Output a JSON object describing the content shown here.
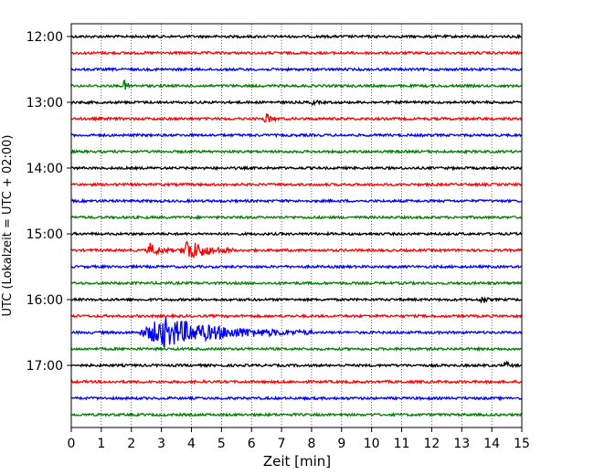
{
  "chart_data": {
    "type": "line",
    "title": "",
    "xlabel": "Zeit  [min]",
    "ylabel": "UTC (Lokalzeit = UTC + 02:00)",
    "xlim": [
      0,
      15
    ],
    "x_ticks": [
      "0",
      "1",
      "2",
      "3",
      "4",
      "5",
      "6",
      "7",
      "8",
      "9",
      "10",
      "11",
      "12",
      "13",
      "14",
      "15"
    ],
    "y_ticks": [
      "12:00",
      "13:00",
      "14:00",
      "15:00",
      "16:00",
      "17:00"
    ],
    "grid": "vertical dotted lines at each minute",
    "trace_colors": [
      "#000000",
      "#ff0000",
      "#0000ff",
      "#008000"
    ],
    "traces_start": "12:00",
    "trace_interval_min": 15,
    "trace_count": 24,
    "events": [
      {
        "trace": "12:45",
        "start_min": 1.7,
        "duration_min": 0.4,
        "amplitude": 0.35
      },
      {
        "trace": "13:00",
        "start_min": 8.0,
        "duration_min": 0.3,
        "amplitude": 0.2
      },
      {
        "trace": "13:15",
        "start_min": 6.4,
        "duration_min": 0.5,
        "amplitude": 0.4
      },
      {
        "trace": "15:15",
        "start_min": 2.5,
        "duration_min": 0.9,
        "amplitude": 0.45
      },
      {
        "trace": "15:15",
        "start_min": 3.6,
        "duration_min": 1.8,
        "amplitude": 0.75
      },
      {
        "trace": "16:00",
        "start_min": 13.6,
        "duration_min": 0.3,
        "amplitude": 0.45
      },
      {
        "trace": "16:30",
        "start_min": 2.2,
        "duration_min": 5.8,
        "amplitude": 1.0
      },
      {
        "trace": "17:00",
        "start_min": 14.4,
        "duration_min": 0.3,
        "amplitude": 0.3
      }
    ]
  }
}
